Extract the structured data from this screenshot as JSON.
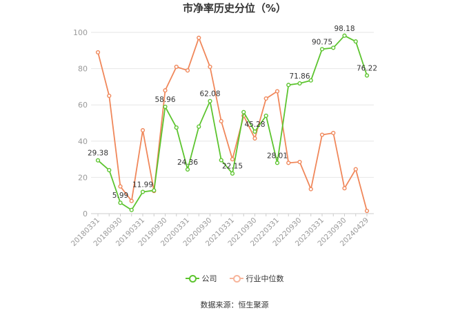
{
  "chart_data": {
    "type": "line",
    "title": "市净率历史分位（%）",
    "ylim": [
      0,
      100
    ],
    "yticks": [
      0,
      20,
      40,
      60,
      80,
      100
    ],
    "x": [
      "20180331",
      "",
      "20180930",
      "",
      "20190331",
      "",
      "20190930",
      "",
      "20200331",
      "",
      "20200930",
      "",
      "20210331",
      "",
      "20210930",
      "",
      "20220331",
      "",
      "20220930",
      "",
      "20230331",
      "",
      "20230930",
      "",
      "20240429"
    ],
    "series": [
      {
        "name": "公司",
        "color": "#5cc42e",
        "values": [
          29.38,
          24.0,
          5.99,
          2.0,
          11.99,
          12.8,
          58.96,
          47.5,
          24.36,
          48.0,
          62.08,
          29.5,
          22.15,
          56.0,
          45.28,
          54.0,
          28.01,
          71.0,
          71.86,
          73.5,
          90.75,
          91.5,
          98.18,
          95.0,
          76.22
        ],
        "labels": [
          "29.38",
          "",
          "5.99",
          "",
          "11.99",
          "",
          "58.96",
          "",
          "24.36",
          "",
          "62.08",
          "",
          "22.15",
          "",
          "45.28",
          "",
          "28.01",
          "",
          "71.86",
          "",
          "90.75",
          "",
          "98.18",
          "",
          "76.22"
        ]
      },
      {
        "name": "行业中位数",
        "color": "#f0875a",
        "values": [
          89.0,
          65.0,
          15.0,
          7.0,
          46.0,
          12.5,
          68.0,
          81.0,
          79.0,
          97.0,
          81.0,
          51.0,
          30.0,
          54.0,
          41.5,
          63.5,
          67.5,
          28.0,
          28.5,
          13.5,
          43.5,
          44.5,
          14.0,
          24.5,
          1.5
        ]
      }
    ]
  },
  "source": "数据来源：恒生聚源"
}
